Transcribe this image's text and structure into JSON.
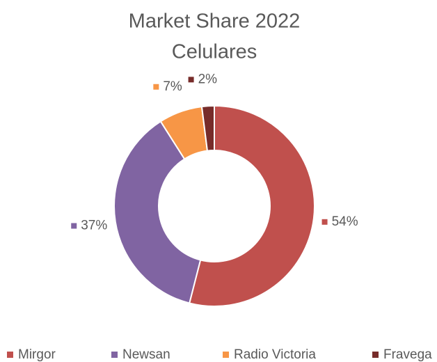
{
  "chart_data": {
    "type": "pie",
    "title": "Market Share 2022",
    "subtitle": "Celulares",
    "categories": [
      "Mirgor",
      "Newsan",
      "Radio Victoria",
      "Fravega"
    ],
    "values": [
      54,
      37,
      7,
      2
    ],
    "value_labels": [
      "54%",
      "37%",
      "7%",
      "2%"
    ],
    "colors": [
      "#c0504d",
      "#8064a2",
      "#f79646",
      "#772c2a"
    ],
    "donut": true,
    "legend": "bottom"
  }
}
